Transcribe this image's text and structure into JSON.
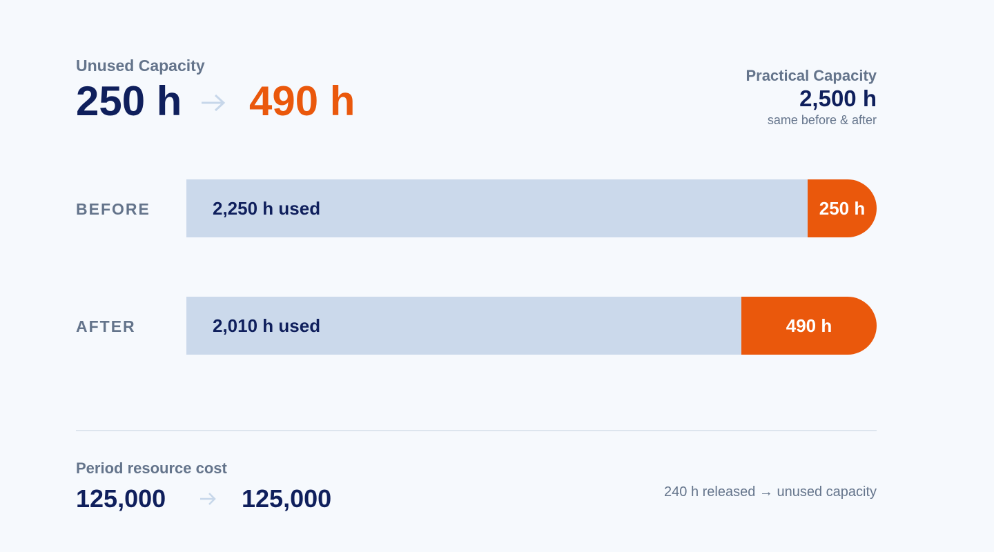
{
  "header": {
    "label": "Unused Capacity",
    "before": "250 h",
    "after": "490 h"
  },
  "practical": {
    "label": "Practical Capacity",
    "value": "2,500 h",
    "note": "same before & after",
    "total": 2500
  },
  "rows": [
    {
      "label": "BEFORE",
      "used": 2250,
      "used_label": "2,250 h used",
      "unused": 250,
      "unused_label": "250 h"
    },
    {
      "label": "AFTER",
      "used": 2010,
      "used_label": "2,010 h used",
      "unused": 490,
      "unused_label": "490 h"
    }
  ],
  "footer": {
    "label": "Period resource cost",
    "before": "125,000",
    "after": "125,000",
    "note": "240 h released → unused capacity"
  }
}
